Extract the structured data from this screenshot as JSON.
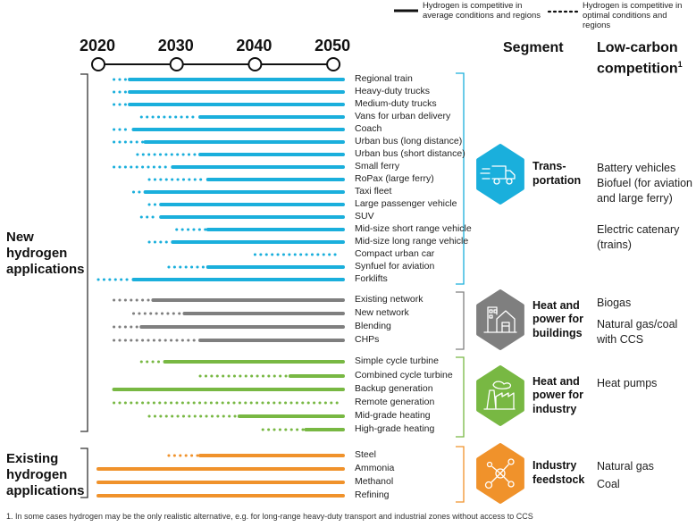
{
  "legend": {
    "solid": "Hydrogen is competitive in average conditions and regions",
    "solid_line1": "Hydrogen is competitive in",
    "solid_line2": "average conditions and regions",
    "dotted_line1": "Hydrogen is competitive in",
    "dotted_line2": "optimal conditions and regions"
  },
  "headers": {
    "segment": "Segment",
    "competition_line1": "Low-carbon",
    "competition_line2": "competition",
    "competition_sup": "1"
  },
  "groups": {
    "new_line1": "New",
    "new_line2": "hydrogen",
    "new_line3": "applications",
    "existing_line1": "Existing",
    "existing_line2": "hydrogen",
    "existing_line3": "applications"
  },
  "segments": [
    {
      "id": "transportation",
      "label_line1": "Trans-",
      "label_line2": "portation",
      "label_line3": "",
      "color": "#1aafdc",
      "icon": "truck-icon",
      "competition": [
        "Battery vehicles",
        "Biofuel (for aviation and large ferry)",
        "Electric catenary (trains)"
      ]
    },
    {
      "id": "buildings",
      "label_line1": "Heat and",
      "label_line2": "power for",
      "label_line3": "buildings",
      "color": "#7f7f7f",
      "icon": "building-icon",
      "competition": [
        "Biogas",
        "Natural gas/coal with CCS"
      ]
    },
    {
      "id": "industry",
      "label_line1": "Heat and",
      "label_line2": "power for",
      "label_line3": "industry",
      "color": "#78b843",
      "icon": "factory-icon",
      "competition": [
        "Heat pumps"
      ]
    },
    {
      "id": "feedstock",
      "label_line1": "Industry",
      "label_line2": "feedstock",
      "label_line3": "",
      "color": "#f0922b",
      "icon": "molecule-icon",
      "competition": [
        "Natural gas",
        "Coal"
      ]
    }
  ],
  "footnote": "1.   In some cases hydrogen may be the only realistic alternative, e.g. for long-range heavy-duty transport and industrial zones without access to CCS",
  "chart_data": {
    "type": "timeline",
    "title": "",
    "x_ticks": [
      2020,
      2030,
      2040,
      2050
    ],
    "x_range": [
      2020,
      2051
    ],
    "legend_placement": "top-right",
    "series_note": "dotted_start = year hydrogen becomes competitive in optimal conditions; solid_start = year competitive in average conditions; null = not reached",
    "rows": [
      {
        "label": "Regional train",
        "segment": "transportation",
        "dotted_start": 2022,
        "solid_start": 2024
      },
      {
        "label": "Heavy-duty trucks",
        "segment": "transportation",
        "dotted_start": 2022,
        "solid_start": 2024
      },
      {
        "label": "Medium-duty trucks",
        "segment": "transportation",
        "dotted_start": 2022,
        "solid_start": 2024
      },
      {
        "label": "Vans for urban delivery",
        "segment": "transportation",
        "dotted_start": 2025.5,
        "solid_start": 2033
      },
      {
        "label": "Coach",
        "segment": "transportation",
        "dotted_start": 2022,
        "solid_start": 2024.5
      },
      {
        "label": "Urban bus (long distance)",
        "segment": "transportation",
        "dotted_start": 2022,
        "solid_start": 2026
      },
      {
        "label": "Urban bus (short distance)",
        "segment": "transportation",
        "dotted_start": 2025,
        "solid_start": 2033
      },
      {
        "label": "Small ferry",
        "segment": "transportation",
        "dotted_start": 2022,
        "solid_start": 2029.5
      },
      {
        "label": "RoPax (large ferry)",
        "segment": "transportation",
        "dotted_start": 2026.5,
        "solid_start": 2034
      },
      {
        "label": "Taxi fleet",
        "segment": "transportation",
        "dotted_start": 2024.5,
        "solid_start": 2026
      },
      {
        "label": "Large passenger vehicle",
        "segment": "transportation",
        "dotted_start": 2026.5,
        "solid_start": 2028
      },
      {
        "label": "SUV",
        "segment": "transportation",
        "dotted_start": 2025.5,
        "solid_start": 2028
      },
      {
        "label": "Mid-size short range vehicle",
        "segment": "transportation",
        "dotted_start": 2030,
        "solid_start": 2034
      },
      {
        "label": "Mid-size long range vehicle",
        "segment": "transportation",
        "dotted_start": 2026.5,
        "solid_start": 2029.5
      },
      {
        "label": "Compact urban car",
        "segment": "transportation",
        "dotted_start": 2040,
        "solid_start": null
      },
      {
        "label": "Synfuel for aviation",
        "segment": "transportation",
        "dotted_start": 2029,
        "solid_start": 2034
      },
      {
        "label": "Forklifts",
        "segment": "transportation",
        "dotted_start": 2020,
        "solid_start": 2024.5
      },
      {
        "label": "Existing network",
        "segment": "buildings",
        "dotted_start": 2022,
        "solid_start": 2027
      },
      {
        "label": "New network",
        "segment": "buildings",
        "dotted_start": 2024.5,
        "solid_start": 2031
      },
      {
        "label": "Blending",
        "segment": "buildings",
        "dotted_start": 2022,
        "solid_start": 2025.5
      },
      {
        "label": "CHPs",
        "segment": "buildings",
        "dotted_start": 2022,
        "solid_start": 2033
      },
      {
        "label": "Simple cycle turbine",
        "segment": "industry",
        "dotted_start": 2025.5,
        "solid_start": 2028.5
      },
      {
        "label": "Combined cycle turbine",
        "segment": "industry",
        "dotted_start": 2033,
        "solid_start": 2044.5
      },
      {
        "label": "Backup generation",
        "segment": "industry",
        "dotted_start": null,
        "solid_start": 2022
      },
      {
        "label": "Remote generation",
        "segment": "industry",
        "dotted_start": 2022,
        "solid_start": null
      },
      {
        "label": "Mid-grade heating",
        "segment": "industry",
        "dotted_start": 2026.5,
        "solid_start": 2038
      },
      {
        "label": "High-grade heating",
        "segment": "industry",
        "dotted_start": 2041,
        "solid_start": 2046.5
      },
      {
        "label": "Steel",
        "segment": "feedstock",
        "dotted_start": 2029,
        "solid_start": 2033
      },
      {
        "label": "Ammonia",
        "segment": "feedstock",
        "dotted_start": null,
        "solid_start": 2020
      },
      {
        "label": "Methanol",
        "segment": "feedstock",
        "dotted_start": null,
        "solid_start": 2020
      },
      {
        "label": "Refining",
        "segment": "feedstock",
        "dotted_start": null,
        "solid_start": 2020
      }
    ]
  }
}
